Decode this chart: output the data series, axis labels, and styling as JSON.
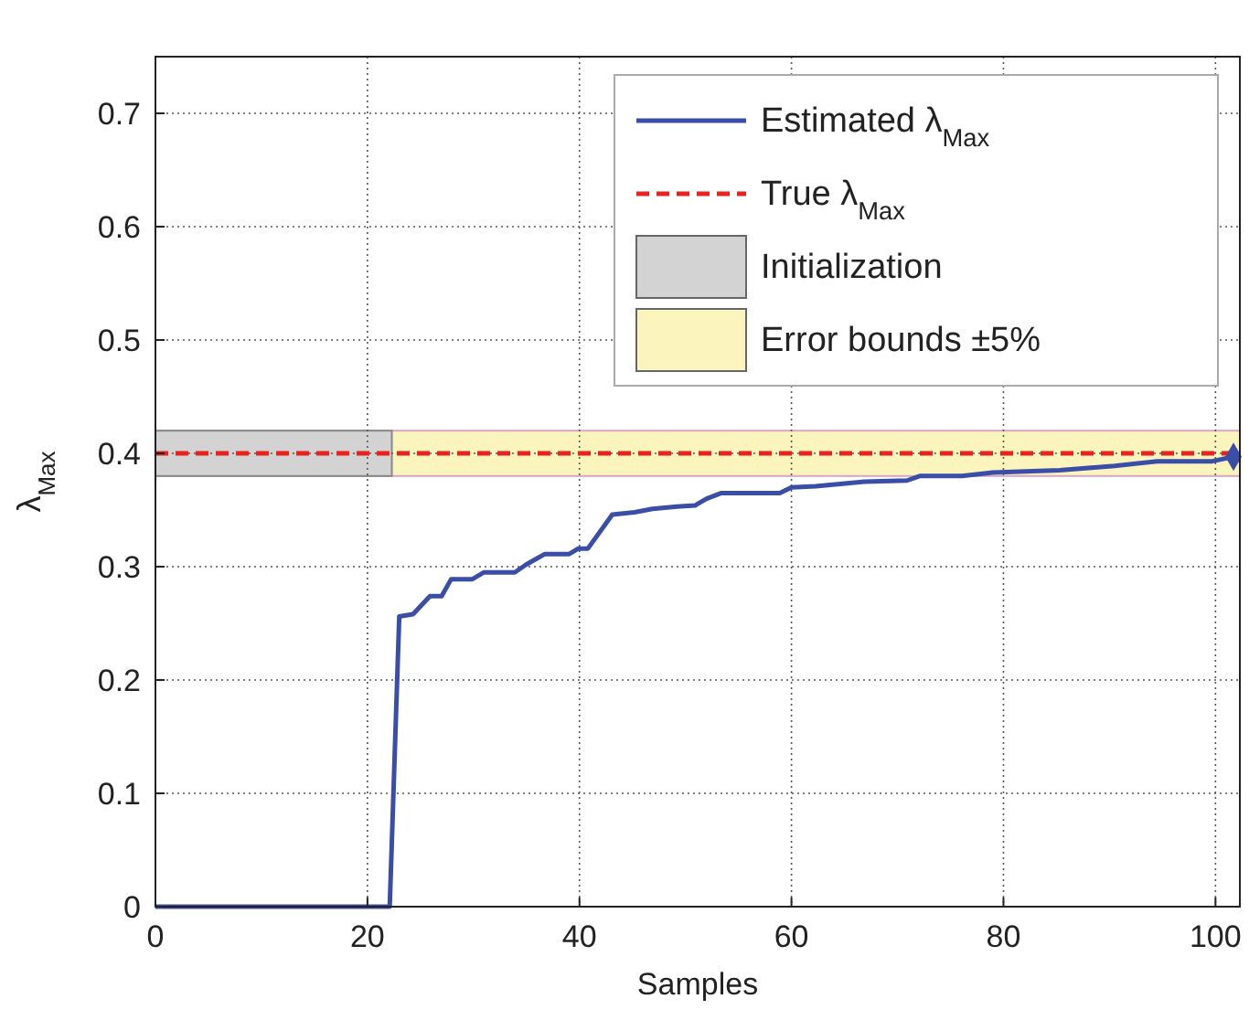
{
  "chart_data": {
    "type": "line",
    "xlabel": "Samples",
    "ylabel": "λ$_{Max}$",
    "xlim": [
      0,
      102.3
    ],
    "ylim": [
      0,
      0.75
    ],
    "xticks": [
      0,
      20,
      40,
      60,
      80,
      100
    ],
    "yticks": [
      0,
      0.1,
      0.2,
      0.3,
      0.4,
      0.5,
      0.6,
      0.7
    ],
    "grid": true,
    "legend": "top right",
    "line_style": "solid",
    "marker": "none",
    "series": [
      {
        "name": "Estimated λ$_{Max}$",
        "color": "#3a4ea8",
        "x": [
          0,
          22.1,
          23.0,
          24.3,
          25.9,
          27.0,
          27.9,
          29.9,
          31.0,
          33.9,
          35.0,
          36.7,
          39.0,
          39.9,
          40.8,
          43.1,
          45.2,
          46.9,
          49.2,
          50.9,
          52.0,
          53.4,
          58.9,
          60.0,
          62.3,
          66.9,
          70.9,
          72.1,
          76.1,
          79.0,
          85.3,
          90.5,
          94.5,
          99.7,
          101.7
        ],
        "values": [
          0,
          0,
          0.256,
          0.258,
          0.274,
          0.274,
          0.289,
          0.289,
          0.295,
          0.295,
          0.302,
          0.311,
          0.311,
          0.316,
          0.316,
          0.346,
          0.348,
          0.351,
          0.353,
          0.354,
          0.36,
          0.365,
          0.365,
          0.37,
          0.371,
          0.375,
          0.376,
          0.38,
          0.38,
          0.383,
          0.385,
          0.389,
          0.393,
          0.393,
          0.397
        ]
      },
      {
        "type": "scatter",
        "color": "#3a4ea8",
        "marker": "diamond",
        "x": [
          101.7
        ],
        "values": [
          0.397
        ]
      }
    ],
    "ref_lines": [
      {
        "axis": "y",
        "value": 0.4,
        "label": "True λ$_{Max}$",
        "color": "#e8231e",
        "line_style": "dashed"
      }
    ],
    "bands": [
      {
        "axis": "x",
        "from": 0,
        "to": 22.3,
        "label": "Initialization",
        "color": "#d3d3d3"
      },
      {
        "axis": "y",
        "from": 0.38,
        "to": 0.42,
        "label": "Error bounds ±5%",
        "color": "#fbf5bd"
      }
    ]
  }
}
